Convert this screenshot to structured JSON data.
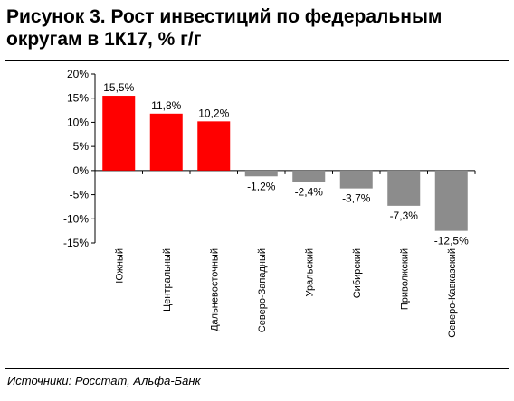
{
  "header": {
    "title_line1": "Рисунок 3. Рост инвестиций по федеральным",
    "title_line2": "округам в 1К17, % г/г"
  },
  "footer": {
    "source": "Источники: Росстат, Альфа-Банк"
  },
  "chart_data": {
    "type": "bar",
    "title": "Рисунок 3. Рост инвестиций по федеральным округам в 1К17, % г/г",
    "categories": [
      "Южный",
      "Центральный",
      "Дальневосточный",
      "Северо-Западный",
      "Уральский",
      "Сибирский",
      "Приволжский",
      "Северо-Кавказский"
    ],
    "values": [
      15.5,
      11.8,
      10.2,
      -1.2,
      -2.4,
      -3.7,
      -7.3,
      -12.5
    ],
    "data_labels": [
      "15,5%",
      "11,8%",
      "10,2%",
      "-1,2%",
      "-2,4%",
      "-3,7%",
      "-7,3%",
      "-12,5%"
    ],
    "colors": [
      "#ff0000",
      "#ff0000",
      "#ff0000",
      "#8c8c8c",
      "#8c8c8c",
      "#8c8c8c",
      "#8c8c8c",
      "#8c8c8c"
    ],
    "ylim": [
      -15,
      20
    ],
    "yticks": [
      20,
      15,
      10,
      5,
      0,
      -5,
      -10,
      -15
    ],
    "ytick_labels": [
      "20%",
      "15%",
      "10%",
      "5%",
      "0%",
      "-5%",
      "-10%",
      "-15%"
    ],
    "grid": false,
    "legend": "none"
  }
}
